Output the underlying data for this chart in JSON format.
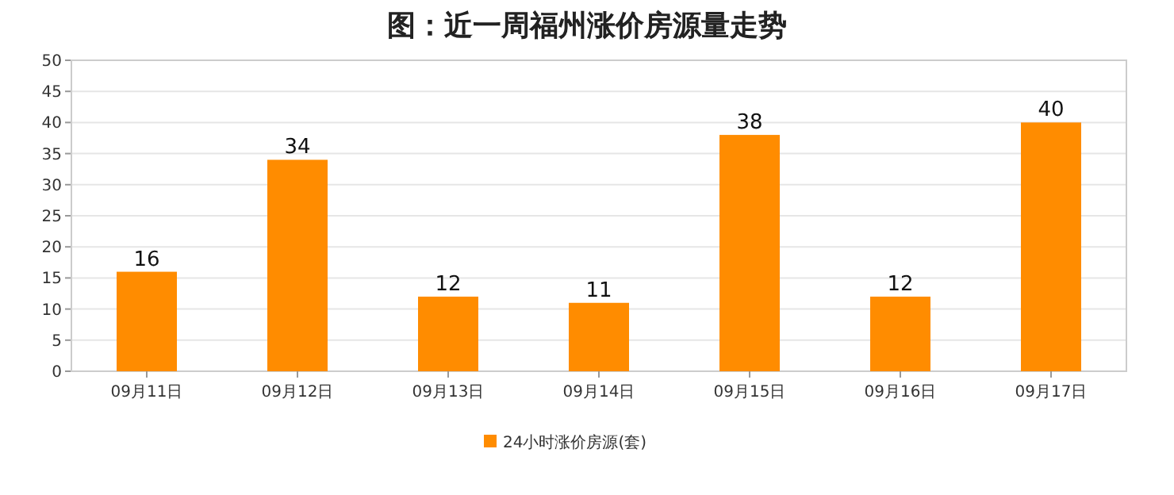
{
  "chart_data": {
    "type": "bar",
    "title": "图：近一周福州涨价房源量走势",
    "categories": [
      "09月11日",
      "09月12日",
      "09月13日",
      "09月14日",
      "09月15日",
      "09月16日",
      "09月17日"
    ],
    "series": [
      {
        "name": "24小时涨价房源(套)",
        "color": "#ff8c00",
        "values": [
          16,
          34,
          12,
          11,
          38,
          12,
          40
        ]
      }
    ],
    "ylim": [
      0,
      50
    ],
    "yticks": [
      0,
      5,
      10,
      15,
      20,
      25,
      30,
      35,
      40,
      45,
      50
    ],
    "grid": "y",
    "legend": "bottom",
    "data_labels": true
  }
}
